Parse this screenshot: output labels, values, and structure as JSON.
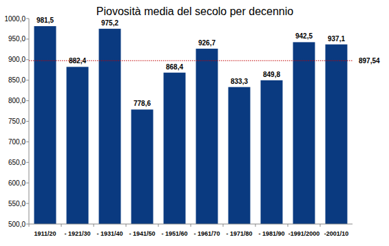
{
  "chart_data": {
    "type": "bar",
    "title": "Piovosità media del secolo per decennio",
    "categories": [
      "1911/20",
      "- 1921/30",
      "- 1931/40",
      "- 1941/50",
      "- 1951/60",
      "- 1961/70",
      "- 1971/80",
      "- 1981/90",
      "-1991/2000",
      "-2001/10"
    ],
    "values": [
      981.5,
      882.4,
      975.2,
      778.6,
      868.4,
      926.7,
      833.3,
      849.8,
      942.5,
      937.1
    ],
    "value_labels": [
      "981,5",
      "882,4",
      "975,2",
      "778,6",
      "868,4",
      "926,7",
      "833,3",
      "849,8",
      "942,5",
      "937,1"
    ],
    "data_labels": true,
    "color": "#0a3a80",
    "ylim": [
      500,
      1000
    ],
    "yticks": [
      {
        "value": 500,
        "label": "500,0"
      },
      {
        "value": 550,
        "label": "550,0"
      },
      {
        "value": 600,
        "label": "600,0"
      },
      {
        "value": 650,
        "label": "650,0"
      },
      {
        "value": 700,
        "label": "700,0"
      },
      {
        "value": 750,
        "label": "750,0"
      },
      {
        "value": 800,
        "label": "800,0"
      },
      {
        "value": 850,
        "label": "850,0"
      },
      {
        "value": 900,
        "label": "900,0"
      },
      {
        "value": 950,
        "label": "950,0"
      },
      {
        "value": 1000,
        "label": "1000,0"
      }
    ],
    "grid": false,
    "average": {
      "value": 897.54,
      "label": "897,54"
    }
  }
}
